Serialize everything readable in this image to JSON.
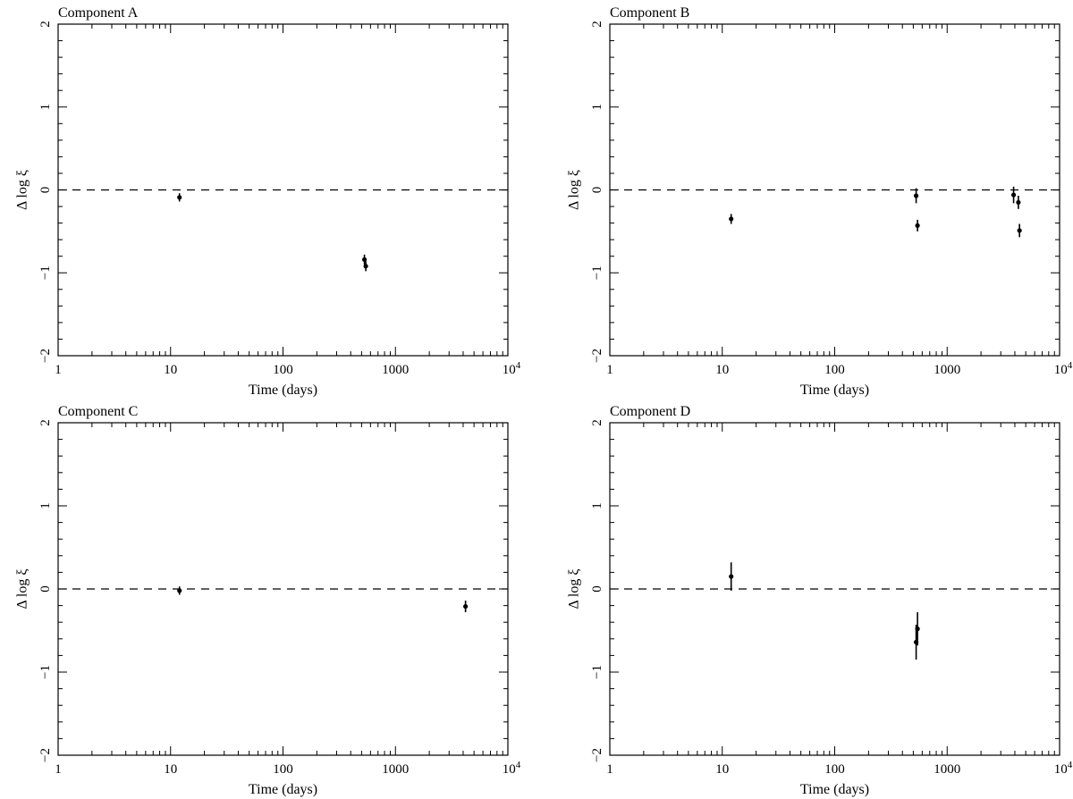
{
  "chart_data": [
    {
      "type": "scatter",
      "title": "Component A",
      "xlabel": "Time (days)",
      "ylabel": "Δ log ξ",
      "xscale": "log",
      "xlim": [
        1,
        10000
      ],
      "ylim": [
        -2,
        2
      ],
      "xticks": [
        "1",
        "10",
        "100",
        "1000",
        "10^4"
      ],
      "yticks": [
        "−2",
        "−1",
        "0",
        "1",
        "2"
      ],
      "reference_line": {
        "y": 0,
        "style": "dashed"
      },
      "grid": false,
      "points": [
        {
          "x": 12,
          "y": -0.09,
          "err": 0.05
        },
        {
          "x": 530,
          "y": -0.84,
          "err": 0.06
        },
        {
          "x": 545,
          "y": -0.92,
          "err": 0.06
        }
      ]
    },
    {
      "type": "scatter",
      "title": "Component B",
      "xlabel": "Time (days)",
      "ylabel": "Δ log ξ",
      "xscale": "log",
      "xlim": [
        1,
        10000
      ],
      "ylim": [
        -2,
        2
      ],
      "xticks": [
        "1",
        "10",
        "100",
        "1000",
        "10^4"
      ],
      "yticks": [
        "−2",
        "−1",
        "0",
        "1",
        "2"
      ],
      "reference_line": {
        "y": 0,
        "style": "dashed"
      },
      "grid": false,
      "points": [
        {
          "x": 12,
          "y": -0.35,
          "err": 0.06
        },
        {
          "x": 530,
          "y": -0.07,
          "err": 0.09
        },
        {
          "x": 545,
          "y": -0.43,
          "err": 0.07
        },
        {
          "x": 3900,
          "y": -0.06,
          "err": 0.1
        },
        {
          "x": 4300,
          "y": -0.15,
          "err": 0.08
        },
        {
          "x": 4400,
          "y": -0.49,
          "err": 0.08
        }
      ]
    },
    {
      "type": "scatter",
      "title": "Component C",
      "xlabel": "Time (days)",
      "ylabel": "Δ log ξ",
      "xscale": "log",
      "xlim": [
        1,
        10000
      ],
      "ylim": [
        -2,
        2
      ],
      "xticks": [
        "1",
        "10",
        "100",
        "1000",
        "10^4"
      ],
      "yticks": [
        "−2",
        "−1",
        "0",
        "1",
        "2"
      ],
      "reference_line": {
        "y": 0,
        "style": "dashed"
      },
      "grid": false,
      "points": [
        {
          "x": 12,
          "y": -0.02,
          "err": 0.05
        },
        {
          "x": 4200,
          "y": -0.21,
          "err": 0.07
        }
      ]
    },
    {
      "type": "scatter",
      "title": "Component D",
      "xlabel": "Time (days)",
      "ylabel": "Δ log ξ",
      "xscale": "log",
      "xlim": [
        1,
        10000
      ],
      "ylim": [
        -2,
        2
      ],
      "xticks": [
        "1",
        "10",
        "100",
        "1000",
        "10^4"
      ],
      "yticks": [
        "−2",
        "−1",
        "0",
        "1",
        "2"
      ],
      "reference_line": {
        "y": 0,
        "style": "dashed"
      },
      "grid": false,
      "points": [
        {
          "x": 12,
          "y": 0.15,
          "err": 0.17
        },
        {
          "x": 530,
          "y": -0.64,
          "err": 0.21
        },
        {
          "x": 545,
          "y": -0.48,
          "err": 0.2
        }
      ]
    }
  ]
}
